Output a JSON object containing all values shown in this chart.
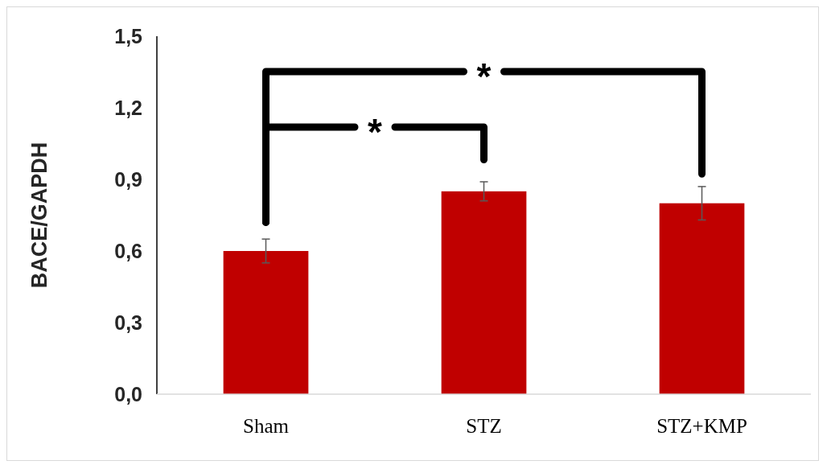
{
  "chart_data": {
    "type": "bar",
    "ylabel": "BACE/GAPDH",
    "categories": [
      "Sham",
      "STZ",
      "STZ+KMP"
    ],
    "values": [
      0.6,
      0.85,
      0.8
    ],
    "errors": [
      0.05,
      0.04,
      0.07
    ],
    "color": "#c00000",
    "ylim": [
      0,
      1.5
    ],
    "yticks": [
      {
        "value": 0,
        "label": "0,0"
      },
      {
        "value": 0.3,
        "label": "0,3"
      },
      {
        "value": 0.6,
        "label": "0,6"
      },
      {
        "value": 0.9,
        "label": "0,9"
      },
      {
        "value": 1.2,
        "label": "1,2"
      },
      {
        "value": 1.5,
        "label": "1,5"
      }
    ],
    "grid": false,
    "annotations": [
      "*",
      "*"
    ]
  }
}
